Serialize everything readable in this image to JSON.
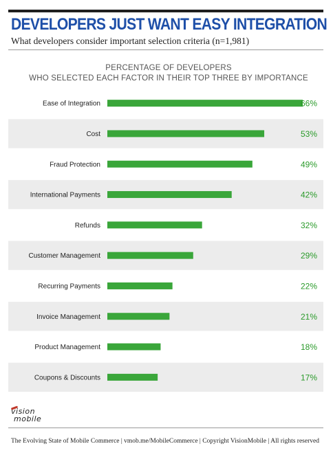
{
  "header": {
    "title": "DEVELOPERS JUST WANT EASY INTEGRATION",
    "subtitle": "What developers consider important selection criteria (n=1,981)"
  },
  "chart_data": {
    "type": "bar",
    "orientation": "horizontal",
    "title_line1": "PERCENTAGE OF DEVELOPERS",
    "title_line2": "WHO SELECTED EACH FACTOR IN THEIR TOP THREE BY IMPORTANCE",
    "categories": [
      "Ease of Integration",
      "Cost",
      "Fraud Protection",
      "International Payments",
      "Refunds",
      "Customer Management",
      "Recurring Payments",
      "Invoice Management",
      "Product Management",
      "Coupons & Discounts"
    ],
    "values": [
      66,
      53,
      49,
      42,
      32,
      29,
      22,
      21,
      18,
      17
    ],
    "value_labels": [
      "66%",
      "53%",
      "49%",
      "42%",
      "32%",
      "29%",
      "22%",
      "21%",
      "18%",
      "17%"
    ],
    "xlim": [
      0,
      66
    ],
    "grid": false,
    "bar_color": "#3aa63a",
    "stripe_color": "#ececec",
    "value_color": "#2a9a2a"
  },
  "logo": {
    "line1": "vision",
    "line2": "mobile"
  },
  "footer": {
    "text": "The Evolving State of Mobile Commerce | vmob.me/MobileCommerce | Copyright VisionMobile | All rights reserved"
  }
}
